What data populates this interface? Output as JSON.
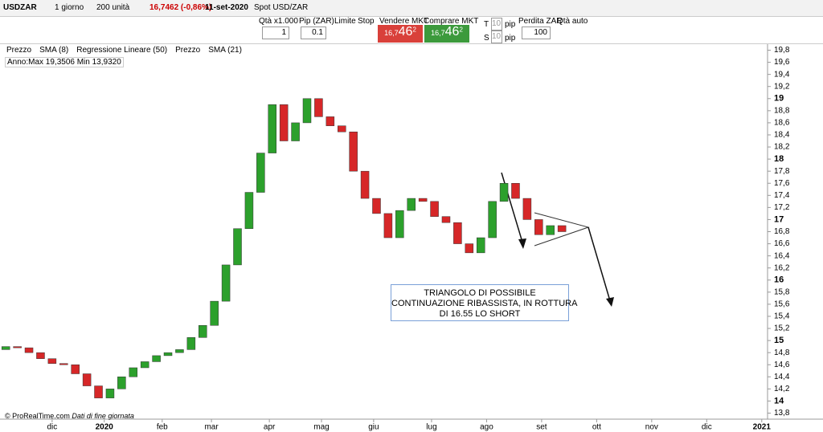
{
  "toolbar": {
    "symbol": "USDZAR",
    "period": "1 giorno",
    "units": "200 unità",
    "price": "16,7462 (-0,86%)",
    "date": "11-set-2020",
    "instrument": "Spot USD/ZAR",
    "qty_label": "Qtà x1.000",
    "qty": "1",
    "pip_label": "Pip (ZAR)",
    "pip": "0.1",
    "limit": "Limite",
    "stop": "Stop",
    "sell_label": "Vendere MKT",
    "sell_big": "16,7",
    "sell_pips": "46",
    "sell_frac": "2",
    "buy_label": "Comprare MKT",
    "buy_big": "16,7",
    "buy_pips": "46",
    "buy_frac": "2",
    "t": "T",
    "s": "S",
    "t_val": "10",
    "s_val": "10",
    "pip_t": "pip",
    "pip_s": "pip",
    "loss_label": "Perdita ZAR",
    "loss": "100",
    "auto_qty": "Qtà auto"
  },
  "legend": [
    "Prezzo",
    "SMA (8)",
    "Regressione Lineare (50)",
    "Prezzo",
    "SMA (21)"
  ],
  "info": "Anno:Max 19,3506 Min 13,9320",
  "footer": {
    "source": "© ProRealTime.com",
    "note": "Dati di fine giornata"
  },
  "annotation": [
    "TRIANGOLO DI POSSIBILE",
    "CONTINUAZIONE RIBASSISTA, IN ROTTURA",
    "DI 16.55 LO SHORT"
  ],
  "chart": {
    "type": "candlestick",
    "up_color": "#2ca02c",
    "down_color": "#d62728",
    "xlim": [
      0,
      265
    ],
    "ylim": [
      13.7,
      19.9
    ],
    "xticks": [
      {
        "value": 18,
        "label": "dic"
      },
      {
        "value": 36,
        "label": "2020"
      },
      {
        "value": 56,
        "label": "feb"
      },
      {
        "value": 73,
        "label": "mar"
      },
      {
        "value": 93,
        "label": "apr"
      },
      {
        "value": 111,
        "label": "mag"
      },
      {
        "value": 129,
        "label": "giu"
      },
      {
        "value": 149,
        "label": "lug"
      },
      {
        "value": 168,
        "label": "ago"
      },
      {
        "value": 187,
        "label": "set"
      },
      {
        "value": 206,
        "label": "ott"
      },
      {
        "value": 225,
        "label": "nov"
      },
      {
        "value": 244,
        "label": "dic"
      },
      {
        "value": 263,
        "label": "2021"
      }
    ],
    "yticks": [
      {
        "value": 13.8,
        "label": "13,8"
      },
      14,
      {
        "value": 14.2,
        "label": "14,2"
      },
      {
        "value": 14.4,
        "label": "14,4"
      },
      {
        "value": 14.6,
        "label": "14,6"
      },
      {
        "value": 14.8,
        "label": "14,8"
      },
      15,
      {
        "value": 15.2,
        "label": "15,2"
      },
      {
        "value": 15.4,
        "label": "15,4"
      },
      {
        "value": 15.6,
        "label": "15,6"
      },
      {
        "value": 15.8,
        "label": "15,8"
      },
      16,
      {
        "value": 16.2,
        "label": "16,2"
      },
      {
        "value": 16.4,
        "label": "16,4"
      },
      {
        "value": 16.6,
        "label": "16,6"
      },
      {
        "value": 16.8,
        "label": "16,8"
      },
      17,
      {
        "value": 17.2,
        "label": "17,2"
      },
      {
        "value": 17.4,
        "label": "17,4"
      },
      {
        "value": 17.6,
        "label": "17,6"
      },
      {
        "value": 17.8,
        "label": "17,8"
      },
      18,
      {
        "value": 18.2,
        "label": "18,2"
      },
      {
        "value": 18.4,
        "label": "18,4"
      },
      {
        "value": 18.6,
        "label": "18,6"
      },
      {
        "value": 18.8,
        "label": "18,8"
      },
      19,
      {
        "value": 19.2,
        "label": "19,2"
      },
      {
        "value": 19.4,
        "label": "19,4"
      },
      {
        "value": 19.6,
        "label": "19,6"
      },
      {
        "value": 19.8,
        "label": "19,8"
      }
    ],
    "x": [
      2,
      6,
      10,
      14,
      18,
      22,
      26,
      30,
      34,
      38,
      42,
      46,
      50,
      54,
      58,
      62,
      66,
      70,
      74,
      78,
      82,
      86,
      90,
      94,
      98,
      102,
      106,
      110,
      114,
      118,
      122,
      126,
      130,
      134,
      138,
      142,
      146,
      150,
      154,
      158,
      162,
      166,
      170,
      174,
      178,
      182,
      186,
      190,
      194
    ],
    "open": [
      14.85,
      14.9,
      14.88,
      14.8,
      14.7,
      14.62,
      14.6,
      14.45,
      14.25,
      14.05,
      14.2,
      14.4,
      14.55,
      14.65,
      14.75,
      14.8,
      14.85,
      15.05,
      15.25,
      15.65,
      16.25,
      16.85,
      17.45,
      18.1,
      18.9,
      18.3,
      18.6,
      19.0,
      18.7,
      18.55,
      18.45,
      17.8,
      17.35,
      17.1,
      16.7,
      17.15,
      17.35,
      17.3,
      17.05,
      16.95,
      16.6,
      16.45,
      16.7,
      17.3,
      17.6,
      17.35,
      17.0,
      16.75,
      16.9
    ],
    "close": [
      14.9,
      14.88,
      14.8,
      14.7,
      14.62,
      14.6,
      14.45,
      14.25,
      14.05,
      14.2,
      14.4,
      14.55,
      14.65,
      14.75,
      14.8,
      14.85,
      15.05,
      15.25,
      15.65,
      16.25,
      16.85,
      17.45,
      18.1,
      18.9,
      18.3,
      18.6,
      19.0,
      18.7,
      18.55,
      18.45,
      17.8,
      17.35,
      17.1,
      16.7,
      17.15,
      17.35,
      17.3,
      17.05,
      16.95,
      16.6,
      16.45,
      16.7,
      17.3,
      17.6,
      17.35,
      17.0,
      16.75,
      16.9,
      16.8
    ]
  }
}
